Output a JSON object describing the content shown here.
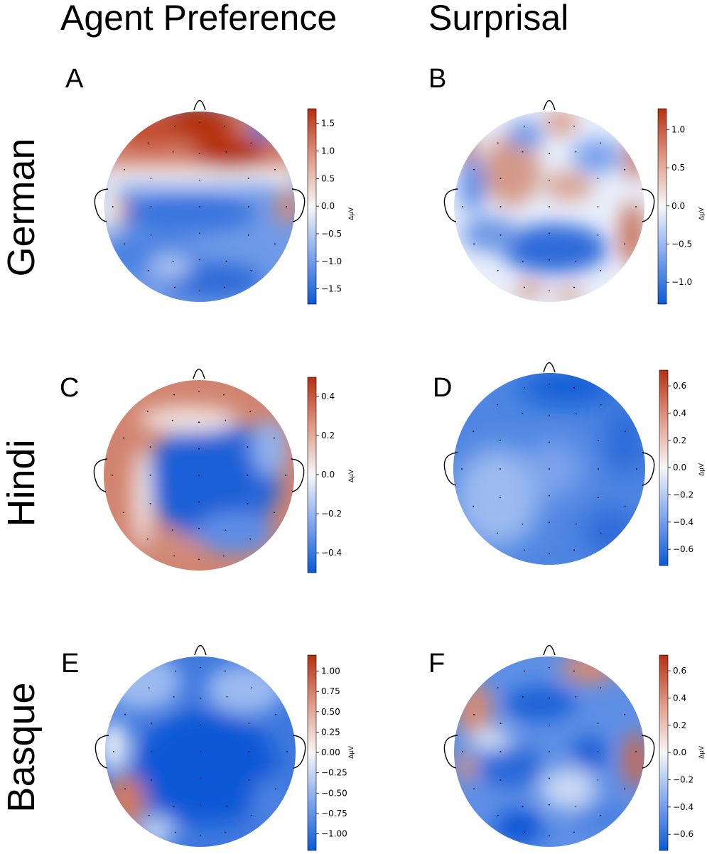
{
  "columns": [
    "Agent Preference",
    "Surprisal"
  ],
  "rows": [
    "German",
    "Hindi",
    "Basque"
  ],
  "colorbar_unit": "ΔμV",
  "colors": {
    "negative": "#0a5ad6",
    "neutral": "#f7f7f7",
    "positive": "#b5300f"
  },
  "panels": [
    {
      "letter": "A",
      "ticks": [
        "1.5",
        "1.0",
        "0.5",
        "0.0",
        "−0.5",
        "−1.0",
        "−1.5"
      ]
    },
    {
      "letter": "B",
      "ticks": [
        "1.0",
        "0.5",
        "0.0",
        "−0.5",
        "−1.0"
      ]
    },
    {
      "letter": "C",
      "ticks": [
        "0.4",
        "0.2",
        "0.0",
        "−0.2",
        "−0.4"
      ]
    },
    {
      "letter": "D",
      "ticks": [
        "0.6",
        "0.4",
        "0.2",
        "0.0",
        "−0.2",
        "−0.4",
        "−0.6"
      ]
    },
    {
      "letter": "E",
      "ticks": [
        "1.00",
        "0.75",
        "0.50",
        "0.25",
        "0.00",
        "−0.25",
        "−0.50",
        "−0.75",
        "−1.00"
      ]
    },
    {
      "letter": "F",
      "ticks": [
        "0.6",
        "0.4",
        "0.2",
        "0.0",
        "−0.2",
        "−0.4",
        "−0.6"
      ]
    }
  ]
}
